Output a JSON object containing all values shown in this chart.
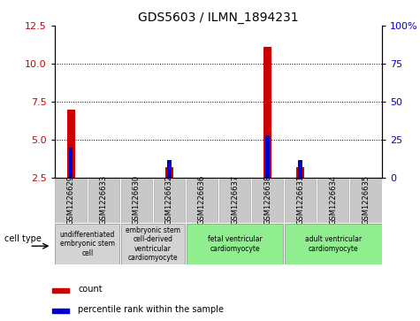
{
  "title": "GDS5603 / ILMN_1894231",
  "samples": [
    "GSM1226629",
    "GSM1226633",
    "GSM1226630",
    "GSM1226632",
    "GSM1226636",
    "GSM1226637",
    "GSM1226638",
    "GSM1226631",
    "GSM1226634",
    "GSM1226635"
  ],
  "counts": [
    7.0,
    2.5,
    2.5,
    3.2,
    2.5,
    2.5,
    11.1,
    3.2,
    2.5,
    2.5
  ],
  "percentiles": [
    20,
    0,
    0,
    12,
    0,
    0,
    28,
    12,
    0,
    0
  ],
  "ylim_left": [
    2.5,
    12.5
  ],
  "ylim_right": [
    0,
    100
  ],
  "yticks_left": [
    2.5,
    5.0,
    7.5,
    10.0,
    12.5
  ],
  "yticks_right": [
    0,
    25,
    50,
    75,
    100
  ],
  "ytick_labels_right": [
    "0",
    "25",
    "50",
    "75",
    "100%"
  ],
  "count_color": "#cc0000",
  "percentile_color": "#0000cc",
  "grid_color": "#000000",
  "cell_types": [
    {
      "label": "undifferentiated\nembryonic stem\ncell",
      "start": 0,
      "end": 2,
      "color": "#d3d3d3"
    },
    {
      "label": "embryonic stem\ncell-derived\nventricular\ncardiomyocyte",
      "start": 2,
      "end": 4,
      "color": "#d3d3d3"
    },
    {
      "label": "fetal ventricular\ncardiomyocyte",
      "start": 4,
      "end": 7,
      "color": "#90ee90"
    },
    {
      "label": "adult ventricular\ncardiomyocyte",
      "start": 7,
      "end": 10,
      "color": "#90ee90"
    }
  ],
  "legend_count_label": "count",
  "legend_pct_label": "percentile rank within the sample",
  "cell_type_label": "cell type",
  "background_color": "#ffffff",
  "plot_bg_color": "#ffffff",
  "sample_bg_color": "#c8c8c8",
  "red_bar_width": 0.25,
  "blue_bar_width": 0.12
}
